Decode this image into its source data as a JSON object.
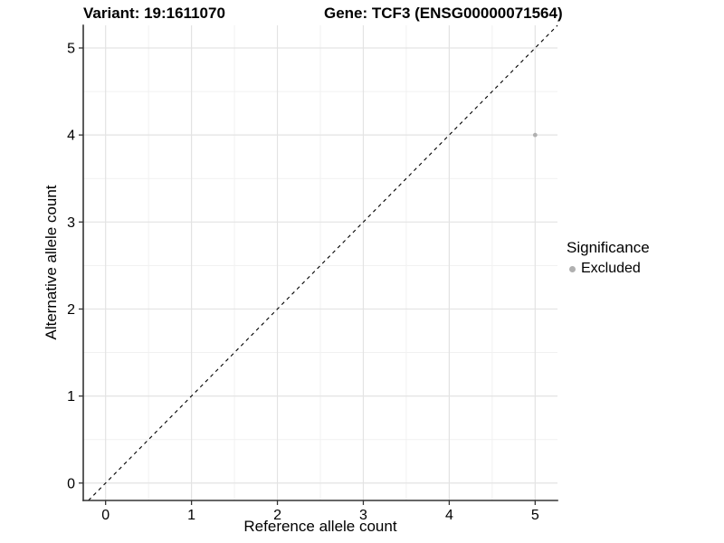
{
  "chart_data": {
    "type": "scatter",
    "title_left": "Variant: 19:1611070",
    "title_right": "Gene: TCF3 (ENSG00000071564)",
    "xlabel": "Reference allele count",
    "ylabel": "Alternative allele count",
    "xlim": [
      -0.26,
      5.26
    ],
    "ylim": [
      -0.2,
      5.26
    ],
    "xticks": [
      0,
      1,
      2,
      3,
      4,
      5
    ],
    "yticks": [
      0,
      1,
      2,
      3,
      4,
      5
    ],
    "minor_grid_step": 0.5,
    "grid": true,
    "reference_line": {
      "type": "identity",
      "equation": "y = x",
      "style": "dashed",
      "color": "#000000"
    },
    "series": [
      {
        "name": "Excluded",
        "color": "#b0b0b0",
        "point_radius": 2.4,
        "points": [
          {
            "x": 5,
            "y": 4
          }
        ]
      }
    ],
    "legend": {
      "title": "Significance",
      "position": "right",
      "items": [
        {
          "label": "Excluded",
          "color": "#b0b0b0",
          "marker": "circle"
        }
      ]
    },
    "colors": {
      "grid_major": "#e3e3e3",
      "grid_minor": "#f1f1f1",
      "axis_line": "#333333",
      "tick_mark": "#333333",
      "text": "#000000",
      "background": "#ffffff"
    }
  }
}
